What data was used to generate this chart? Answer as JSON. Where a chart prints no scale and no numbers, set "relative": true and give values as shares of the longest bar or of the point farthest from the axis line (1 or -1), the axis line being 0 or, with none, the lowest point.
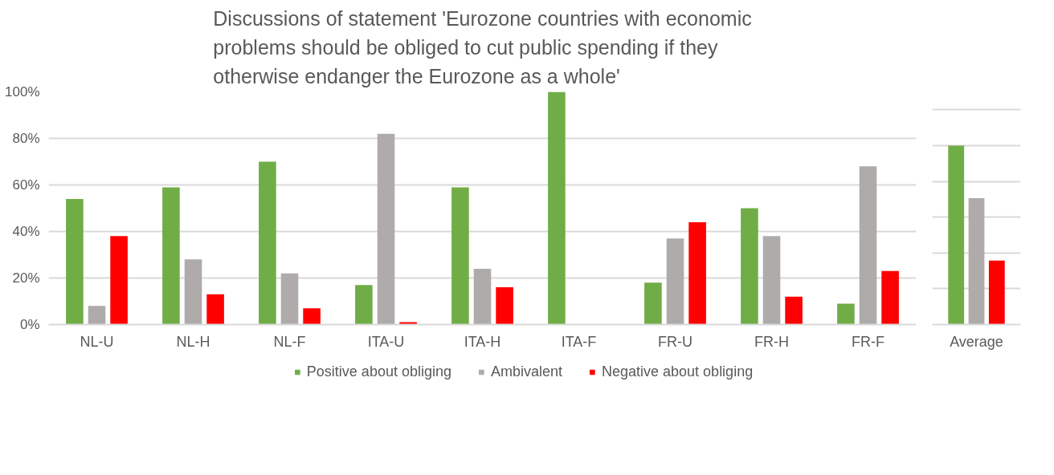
{
  "chart_data": [
    {
      "type": "bar",
      "title": "Discussions of statement 'Eurozone countries with economic problems should be obliged to cut public spending if they otherwise endanger the Eurozone as a whole'",
      "categories": [
        "NL-U",
        "NL-H",
        "NL-F",
        "ITA-U",
        "ITA-H",
        "ITA-F",
        "FR-U",
        "FR-H",
        "FR-F"
      ],
      "series": [
        {
          "name": "Positive about obliging",
          "color": "#70ad47",
          "values": [
            54,
            59,
            70,
            17,
            59,
            100,
            18,
            50,
            9
          ]
        },
        {
          "name": "Ambivalent",
          "color": "#afabab",
          "values": [
            8,
            28,
            22,
            82,
            24,
            0,
            37,
            38,
            68
          ]
        },
        {
          "name": "Negative about obliging",
          "color": "#ff0000",
          "values": [
            38,
            13,
            7,
            1,
            16,
            0,
            44,
            12,
            23
          ]
        }
      ],
      "ylim": [
        0,
        100
      ],
      "yticks": [
        {
          "value": 0,
          "label": "0%"
        },
        {
          "value": 20,
          "label": "20%"
        },
        {
          "value": 40,
          "label": "40%"
        },
        {
          "value": 60,
          "label": "60%"
        },
        {
          "value": 80,
          "label": "80%"
        },
        {
          "value": 100,
          "label": "100%"
        }
      ],
      "grid": "y",
      "legend": "bottom"
    },
    {
      "type": "bar",
      "relative": true,
      "categories": [
        "Average"
      ],
      "series": [
        {
          "color": "#70ad47",
          "values": [
            1
          ]
        },
        {
          "color": "#afabab",
          "values": [
            0.706
          ]
        },
        {
          "color": "#ff0000",
          "values": [
            0.357
          ]
        }
      ],
      "grid": "y"
    }
  ]
}
